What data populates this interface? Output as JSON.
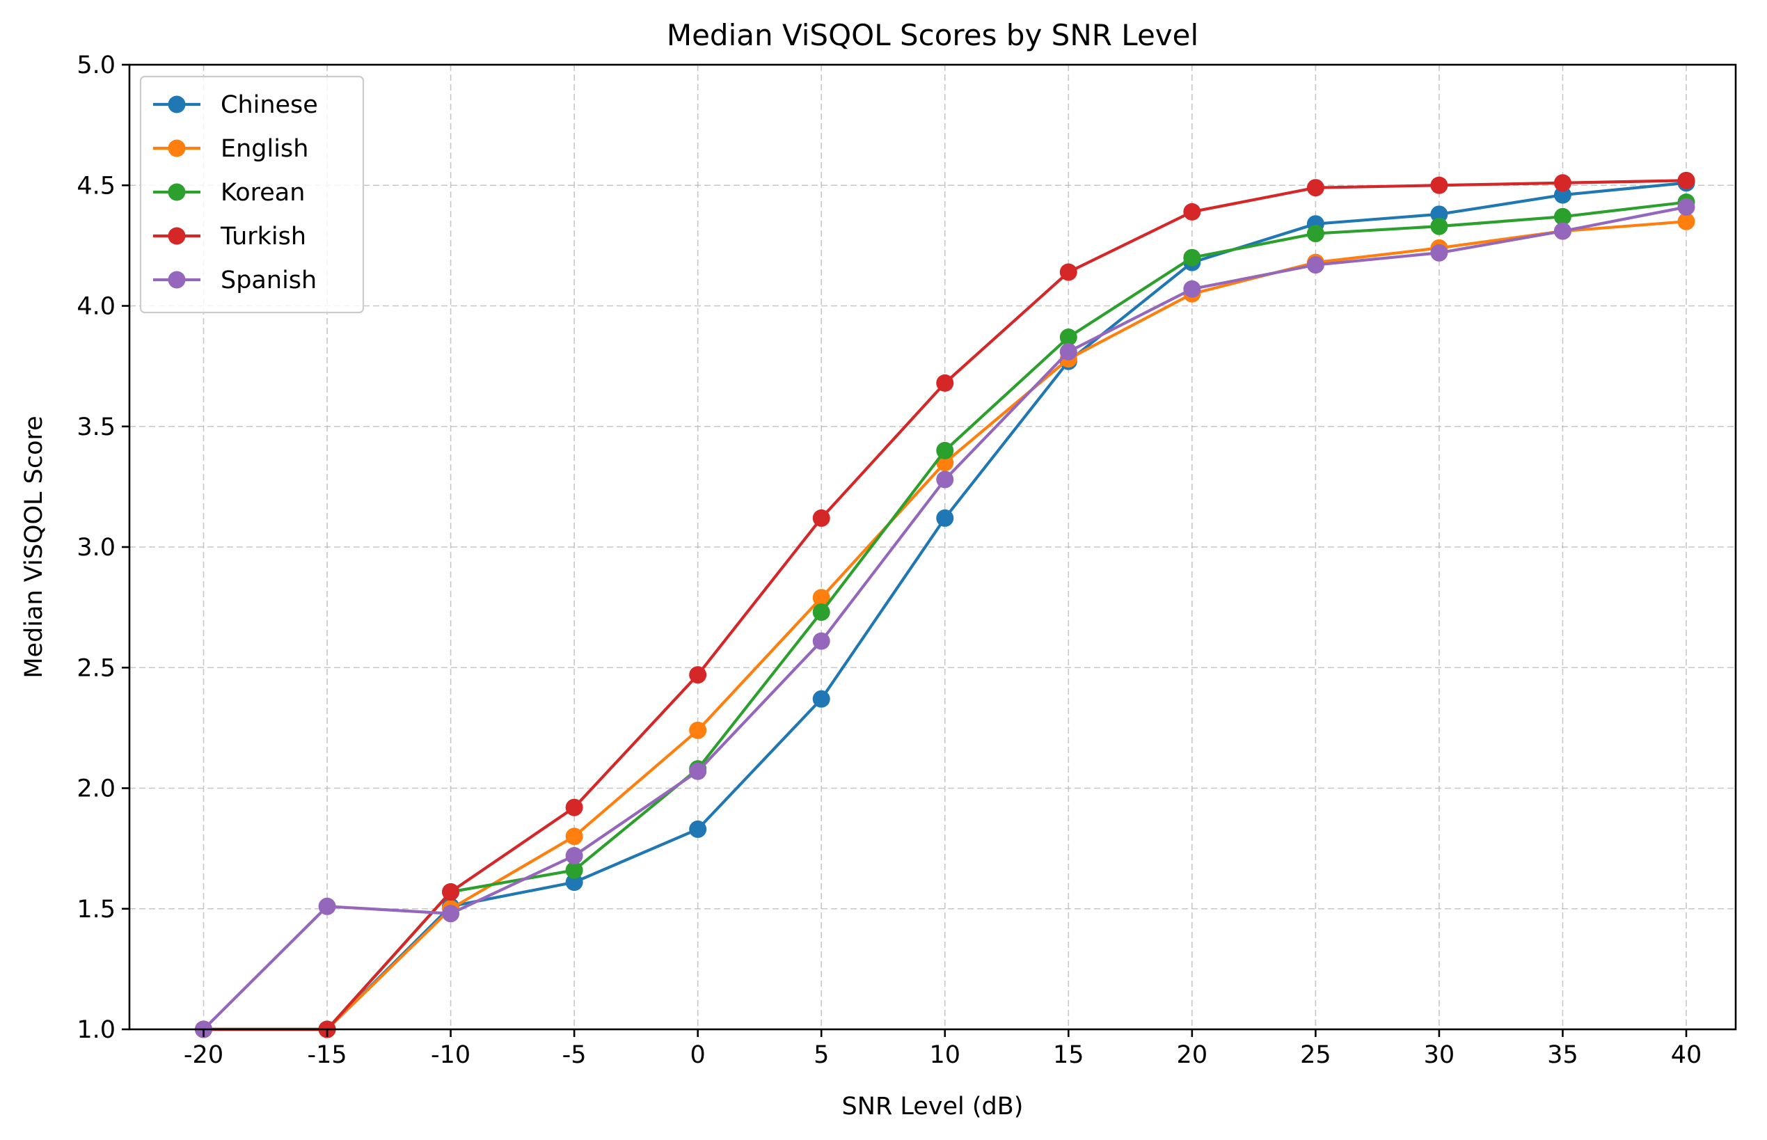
{
  "chart_data": {
    "type": "line",
    "title": "Median ViSQOL Scores by SNR Level",
    "xlabel": "SNR Level (dB)",
    "ylabel": "Median ViSQOL Score",
    "x": [
      -20,
      -15,
      -10,
      -5,
      0,
      5,
      10,
      15,
      20,
      25,
      30,
      35,
      40
    ],
    "x_tick_labels": [
      "-20",
      "-15",
      "-10",
      "-5",
      "0",
      "5",
      "10",
      "15",
      "20",
      "25",
      "30",
      "35",
      "40"
    ],
    "y_ticks": [
      1.0,
      1.5,
      2.0,
      2.5,
      3.0,
      3.5,
      4.0,
      4.5,
      5.0
    ],
    "y_tick_labels": [
      "1.0",
      "1.5",
      "2.0",
      "2.5",
      "3.0",
      "3.5",
      "4.0",
      "4.5",
      "5.0"
    ],
    "xlim": [
      -23,
      42
    ],
    "ylim": [
      1.0,
      5.0
    ],
    "grid": true,
    "legend_position": "upper-left",
    "series": [
      {
        "name": "Chinese",
        "color": "#1f77b4",
        "values": [
          1.0,
          1.0,
          1.51,
          1.61,
          1.83,
          2.37,
          3.12,
          3.77,
          4.18,
          4.34,
          4.38,
          4.46,
          4.51
        ]
      },
      {
        "name": "English",
        "color": "#ff7f0e",
        "values": [
          1.0,
          1.0,
          1.5,
          1.8,
          2.24,
          2.79,
          3.35,
          3.78,
          4.05,
          4.18,
          4.24,
          4.31,
          4.35
        ]
      },
      {
        "name": "Korean",
        "color": "#2ca02c",
        "values": [
          1.0,
          1.0,
          1.57,
          1.66,
          2.08,
          2.73,
          3.4,
          3.87,
          4.2,
          4.3,
          4.33,
          4.37,
          4.43
        ]
      },
      {
        "name": "Turkish",
        "color": "#d62728",
        "values": [
          1.0,
          1.0,
          1.57,
          1.92,
          2.47,
          3.12,
          3.68,
          4.14,
          4.39,
          4.49,
          4.5,
          4.51,
          4.52
        ]
      },
      {
        "name": "Spanish",
        "color": "#9467bd",
        "values": [
          1.0,
          1.51,
          1.48,
          1.72,
          2.07,
          2.61,
          3.28,
          3.81,
          4.07,
          4.17,
          4.22,
          4.31,
          4.41
        ]
      }
    ]
  }
}
